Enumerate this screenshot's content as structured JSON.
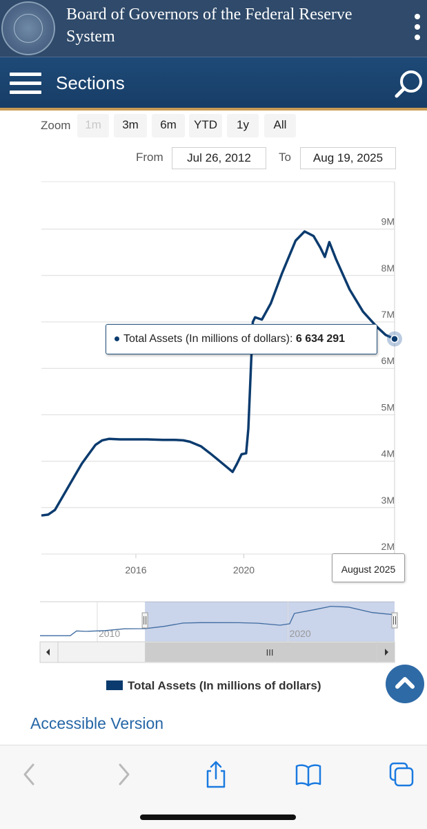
{
  "header": {
    "site_title": "Board of Governors of the Federal Reserve System",
    "menu_label": "Sections",
    "colors": {
      "top_bar": "#2f4a6a",
      "nav_bar": "#1e4a78",
      "accent": "#c99b55"
    }
  },
  "icons": {
    "seal": "federal-reserve-seal",
    "menu": "hamburger-icon",
    "search": "search-icon",
    "more": "kebab-icon",
    "back_to_top": "chevron-up-icon"
  },
  "range_selector": {
    "zoom_label": "Zoom",
    "buttons": [
      "1m",
      "3m",
      "6m",
      "YTD",
      "1y",
      "All"
    ],
    "disabled": "1m",
    "from_label": "From",
    "from_value": "Jul 26, 2012",
    "to_label": "To",
    "to_value": "Aug 19, 2025"
  },
  "chart_data": {
    "type": "line",
    "series": [
      {
        "name": "Total Assets (In millions of dollars)",
        "color": "#0b3b6e",
        "points": [
          [
            "2012-07",
            2.83
          ],
          [
            "2012-10",
            2.85
          ],
          [
            "2013-01",
            2.95
          ],
          [
            "2013-04",
            3.2
          ],
          [
            "2013-07",
            3.45
          ],
          [
            "2013-10",
            3.7
          ],
          [
            "2014-01",
            3.95
          ],
          [
            "2014-04",
            4.15
          ],
          [
            "2014-07",
            4.35
          ],
          [
            "2014-10",
            4.45
          ],
          [
            "2015-01",
            4.48
          ],
          [
            "2015-06",
            4.47
          ],
          [
            "2016-01",
            4.47
          ],
          [
            "2016-06",
            4.47
          ],
          [
            "2017-01",
            4.46
          ],
          [
            "2017-06",
            4.46
          ],
          [
            "2017-10",
            4.45
          ],
          [
            "2018-01",
            4.42
          ],
          [
            "2018-06",
            4.32
          ],
          [
            "2018-10",
            4.17
          ],
          [
            "2019-01",
            4.05
          ],
          [
            "2019-06",
            3.85
          ],
          [
            "2019-08",
            3.77
          ],
          [
            "2019-10",
            3.95
          ],
          [
            "2019-12",
            4.15
          ],
          [
            "2020-02",
            4.17
          ],
          [
            "2020-03",
            4.7
          ],
          [
            "2020-05",
            7.0
          ],
          [
            "2020-06",
            7.1
          ],
          [
            "2020-09",
            7.05
          ],
          [
            "2021-01",
            7.4
          ],
          [
            "2021-06",
            8.05
          ],
          [
            "2021-12",
            8.75
          ],
          [
            "2022-04",
            8.95
          ],
          [
            "2022-08",
            8.85
          ],
          [
            "2022-11",
            8.6
          ],
          [
            "2023-01",
            8.4
          ],
          [
            "2023-03",
            8.72
          ],
          [
            "2023-06",
            8.35
          ],
          [
            "2023-12",
            7.7
          ],
          [
            "2024-06",
            7.22
          ],
          [
            "2024-12",
            6.9
          ],
          [
            "2025-04",
            6.72
          ],
          [
            "2025-08",
            6.634291
          ]
        ]
      }
    ],
    "y_axis": {
      "ticks": [
        "2M",
        "3M",
        "4M",
        "5M",
        "6M",
        "7M",
        "8M",
        "9M"
      ],
      "range": [
        2,
        10
      ]
    },
    "x_axis": {
      "ticks": [
        "2016",
        "2020"
      ],
      "range": [
        "2012-07",
        "2025-08"
      ]
    },
    "tooltip": {
      "series_label": "Total Assets (In millions of dollars):",
      "value": "6 634 291",
      "x_label": "August 2025"
    },
    "navigator": {
      "ticks": [
        "2010",
        "2020"
      ],
      "range": [
        "2007-01",
        "2025-08"
      ],
      "selected_range": [
        "2012-07",
        "2025-08"
      ],
      "scrollbar_grip": "III",
      "series": [
        [
          "2007-01",
          0.9
        ],
        [
          "2008-08",
          0.9
        ],
        [
          "2008-12",
          2.2
        ],
        [
          "2009-06",
          2.1
        ],
        [
          "2010-06",
          2.3
        ],
        [
          "2011-06",
          2.8
        ],
        [
          "2012-07",
          2.83
        ],
        [
          "2013-07",
          3.45
        ],
        [
          "2014-07",
          4.35
        ],
        [
          "2015-06",
          4.47
        ],
        [
          "2017-06",
          4.46
        ],
        [
          "2018-06",
          4.32
        ],
        [
          "2019-08",
          3.77
        ],
        [
          "2020-02",
          4.17
        ],
        [
          "2020-05",
          7.0
        ],
        [
          "2021-06",
          8.05
        ],
        [
          "2022-04",
          8.95
        ],
        [
          "2023-03",
          8.72
        ],
        [
          "2024-06",
          7.22
        ],
        [
          "2025-08",
          6.63
        ]
      ]
    },
    "legend": [
      "Total Assets (In millions of dollars)"
    ],
    "grid": true
  },
  "links": {
    "accessible": "Accessible Version"
  },
  "browser_toolbar": {
    "buttons": [
      "back-icon",
      "forward-icon",
      "share-icon",
      "bookmarks-icon",
      "tabs-icon"
    ]
  }
}
